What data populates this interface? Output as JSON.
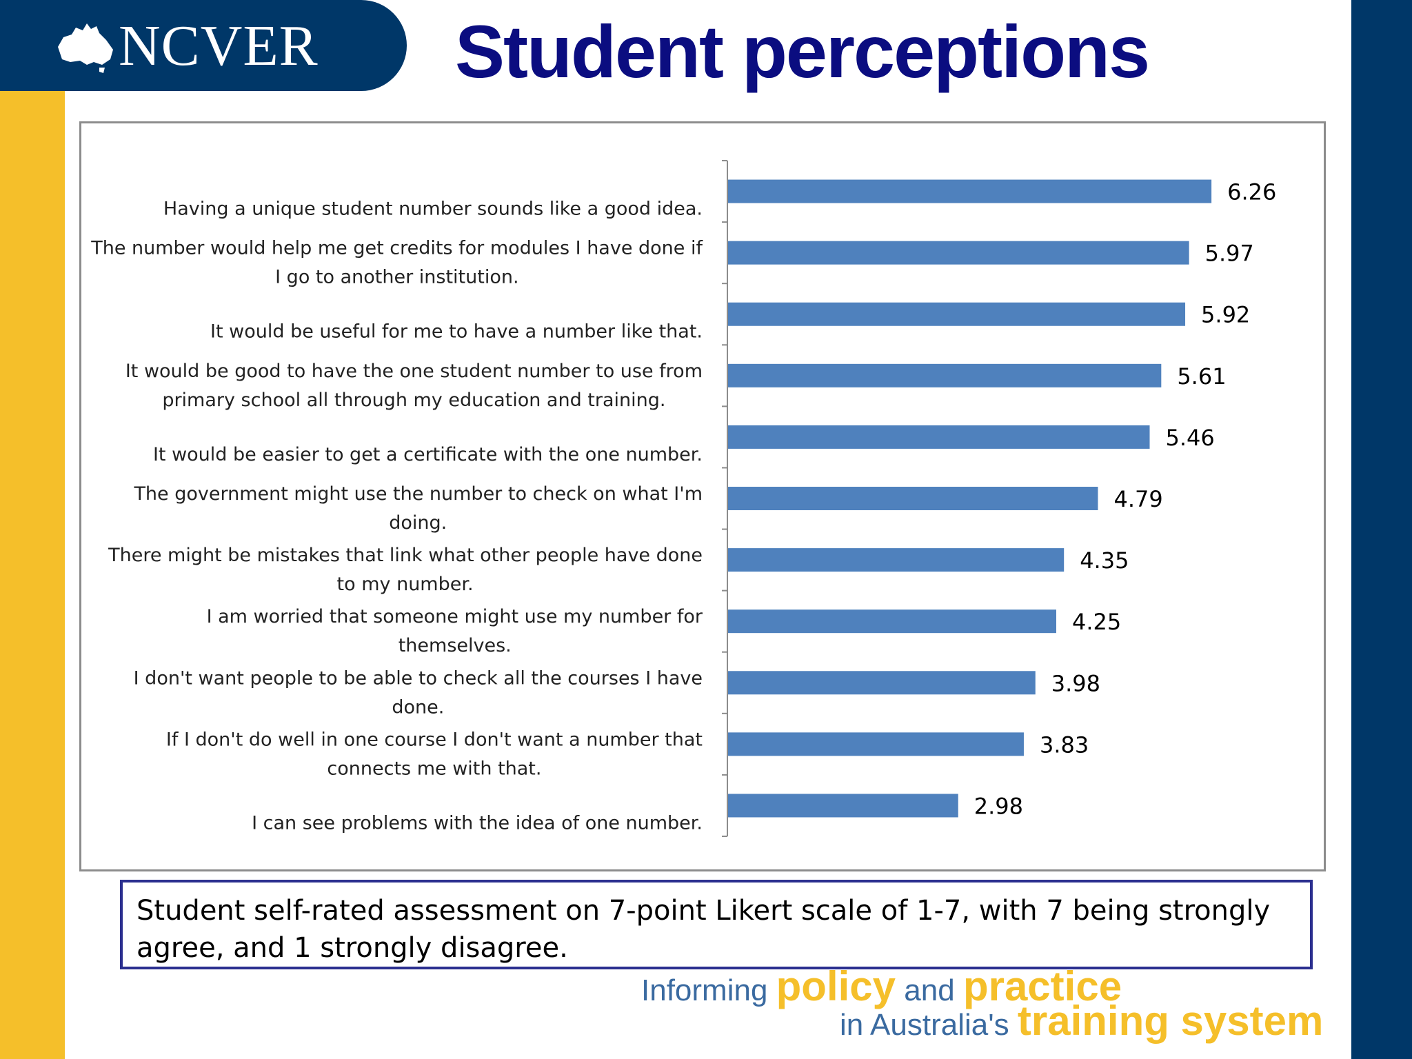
{
  "header": {
    "logo_text": "NCVER",
    "title": "Student perceptions"
  },
  "note": "Student self-rated assessment on 7-point Likert scale of 1-7, with 7 being strongly agree, and 1 strongly disagree.",
  "tagline": {
    "line1_prefix": "Informing",
    "line1_em1": "policy",
    "line1_mid": "and",
    "line1_em2": "practice",
    "line2_prefix": "in Australia's",
    "line2_em": "training system"
  },
  "colors": {
    "bar": "#4f81bd",
    "title": "#0b0d80",
    "navy": "#003768",
    "gold": "#f5bf2a"
  },
  "chart_data": {
    "type": "bar",
    "orientation": "horizontal",
    "categories": [
      [
        "Having a unique student number sounds like a good idea."
      ],
      [
        "The number would help me get credits for modules I have done if",
        "I go to another institution."
      ],
      [
        "It would be useful for me to have a number like that."
      ],
      [
        "It would be good to have the one student number to use from",
        "primary school all through my education and training."
      ],
      [
        "It would be easier to get a certificate with the one number."
      ],
      [
        "The government might use the number to check on what I'm",
        "doing."
      ],
      [
        "There might be mistakes that link what other people have done",
        "to my number."
      ],
      [
        "I am worried that someone might use my number for",
        "themselves."
      ],
      [
        "I don't want people to be able to check all the courses I have",
        "done."
      ],
      [
        "If I don't do well in one course I don't want a number that",
        "connects me with that."
      ],
      [
        "I can see problems with the idea of one number."
      ]
    ],
    "values": [
      6.26,
      5.97,
      5.92,
      5.61,
      5.46,
      4.79,
      4.35,
      4.25,
      3.98,
      3.83,
      2.98
    ],
    "value_labels": [
      "6.26",
      "5.97",
      "5.92",
      "5.61",
      "5.46",
      "4.79",
      "4.35",
      "4.25",
      "3.98",
      "3.83",
      "2.98"
    ],
    "xlim": [
      0,
      7
    ],
    "grid": false,
    "legend": "none"
  }
}
